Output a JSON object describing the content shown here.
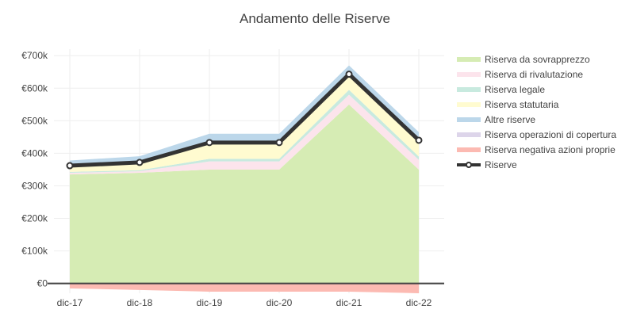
{
  "chart_data": {
    "type": "area",
    "title": "Andamento delle Riserve",
    "xlabel": "",
    "ylabel": "",
    "categories": [
      "dic-17",
      "dic-18",
      "dic-19",
      "dic-20",
      "dic-21",
      "dic-22"
    ],
    "y_ticks": [
      0,
      100000,
      200000,
      300000,
      400000,
      500000,
      600000,
      700000
    ],
    "y_tick_labels": [
      "€0",
      "€100k",
      "€200k",
      "€300k",
      "€400k",
      "€500k",
      "€600k",
      "€700k"
    ],
    "ylim": [
      -30000,
      720000
    ],
    "grid": true,
    "legend_position": "right",
    "stacked_positive": [
      {
        "name": "Riserva da sovrapprezzo",
        "color": "#d6ecb4",
        "values": [
          335000,
          340000,
          350000,
          350000,
          550000,
          350000
        ]
      },
      {
        "name": "Riserva di rivalutazione",
        "color": "#fce4ec",
        "values": [
          5000,
          5000,
          25000,
          25000,
          30000,
          30000
        ]
      },
      {
        "name": "Riserva legale",
        "color": "#c8eadf",
        "values": [
          3000,
          3000,
          8000,
          8000,
          15000,
          10000
        ]
      },
      {
        "name": "Riserva statutaria",
        "color": "#fffbd0",
        "values": [
          20000,
          28000,
          50000,
          50000,
          45000,
          45000
        ]
      },
      {
        "name": "Altre riserve",
        "color": "#bcd7ea",
        "values": [
          15000,
          15000,
          27000,
          27000,
          30000,
          30000
        ]
      },
      {
        "name": "Riserva operazioni di copertura",
        "color": "#ddd5ea",
        "values": [
          0,
          0,
          0,
          0,
          0,
          0
        ]
      }
    ],
    "negative_series": {
      "name": "Riserva negativa azioni proprie",
      "color": "#fcbab2",
      "values": [
        -15000,
        -20000,
        -25000,
        -25000,
        -25000,
        -30000
      ]
    },
    "line_series": {
      "name": "Riserve",
      "color": "#333333",
      "values": [
        362000,
        372000,
        433000,
        433000,
        643000,
        440000
      ]
    }
  }
}
